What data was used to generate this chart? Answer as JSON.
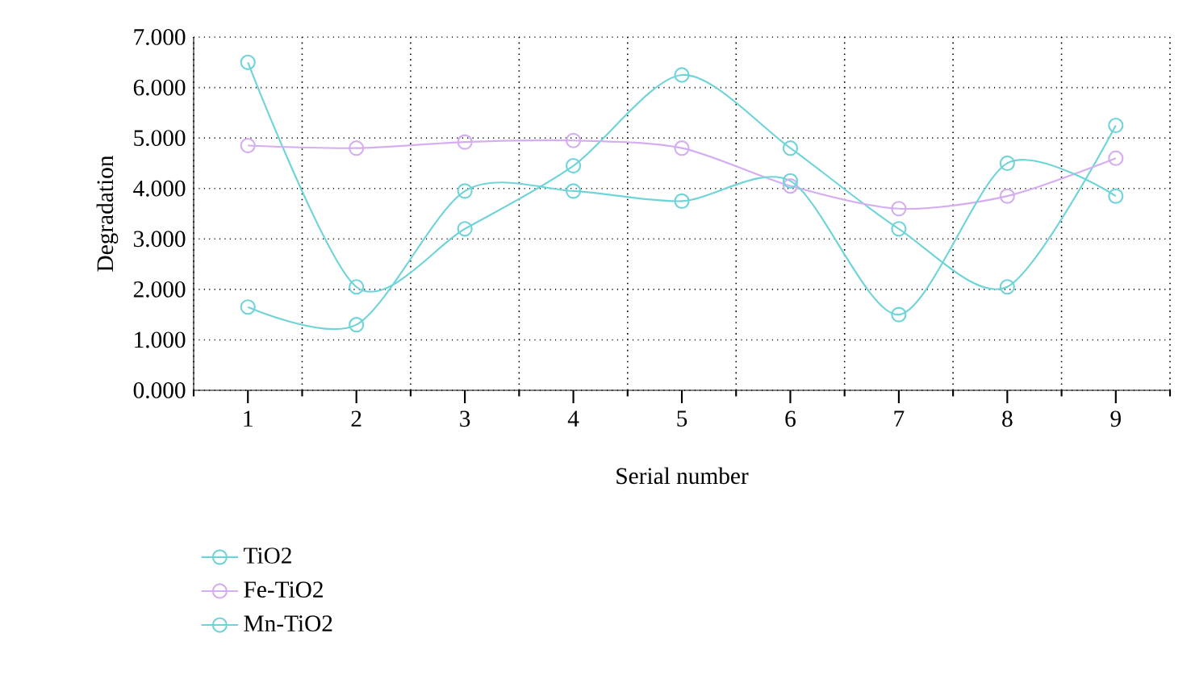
{
  "chart_data": {
    "type": "line",
    "xlabel": "Serial number",
    "ylabel": "Degradation",
    "categories": [
      "1",
      "2",
      "3",
      "4",
      "5",
      "6",
      "7",
      "8",
      "9"
    ],
    "ylim": [
      0,
      7
    ],
    "yticks": [
      {
        "value": 0,
        "label": "0.000"
      },
      {
        "value": 1,
        "label": "1.000"
      },
      {
        "value": 2,
        "label": "2.000"
      },
      {
        "value": 3,
        "label": "3.000"
      },
      {
        "value": 4,
        "label": "4.000"
      },
      {
        "value": 5,
        "label": "5.000"
      },
      {
        "value": 6,
        "label": "6.000"
      },
      {
        "value": 7,
        "label": "7.000"
      }
    ],
    "series": [
      {
        "name": "TiO2",
        "color": "#6fd4d8",
        "values": [
          6.5,
          2.05,
          3.2,
          4.45,
          6.25,
          4.8,
          3.2,
          2.05,
          5.25
        ]
      },
      {
        "name": "Fe-TiO2",
        "color": "#d4aef0",
        "values": [
          4.85,
          4.8,
          4.92,
          4.95,
          4.8,
          4.05,
          3.6,
          3.85,
          4.6
        ]
      },
      {
        "name": "Mn-TiO2",
        "color": "#6fd4d8",
        "values": [
          1.65,
          1.3,
          3.95,
          3.95,
          3.75,
          4.15,
          1.5,
          4.5,
          3.85
        ]
      }
    ],
    "grid": true,
    "legend": "bottom left",
    "marker": "circle",
    "line_style": "solid"
  }
}
